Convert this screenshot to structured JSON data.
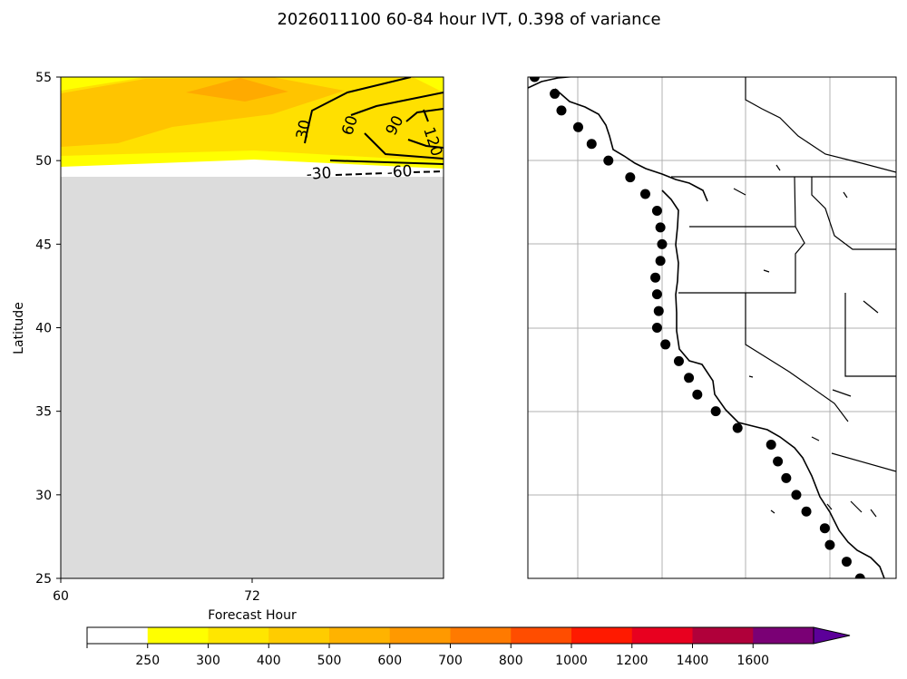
{
  "title": "2026011100 60-84 hour IVT, 0.398 of variance",
  "chart_data": [
    {
      "type": "heatmap",
      "panel": "hovmoller",
      "xlabel": "Forecast Hour",
      "ylabel": "Latitude",
      "xlim": [
        60,
        84
      ],
      "ylim": [
        25,
        55
      ],
      "x_ticks": [
        60,
        72
      ],
      "y_ticks": [
        25,
        30,
        35,
        40,
        45,
        50,
        55
      ],
      "x_tick_labels": [
        "60",
        "72"
      ],
      "y_tick_labels": [
        "25",
        "30",
        "35",
        "40",
        "45",
        "50",
        "55"
      ],
      "no_data_below_latitude": 49,
      "filled_contours": [
        {
          "level": "250-300",
          "color": "#ffff00",
          "region": "lat 49.6-55, all hours"
        },
        {
          "level": "300-400",
          "color": "#ffe000",
          "region": "lat 50.2-54.8"
        },
        {
          "level": "400-500",
          "color": "#ffc400",
          "region": "lat 50.8-54.5"
        },
        {
          "level": "500-600",
          "color": "#ffaa00",
          "region": "near lat 54, hour 70-74"
        }
      ],
      "line_contours": [
        {
          "value": 30,
          "label": "30",
          "style": "solid"
        },
        {
          "value": 60,
          "label": "60",
          "style": "solid"
        },
        {
          "value": 90,
          "label": "90",
          "style": "solid"
        },
        {
          "value": 120,
          "label": "120",
          "style": "solid"
        },
        {
          "value": -30,
          "label": "-30",
          "style": "dashed"
        },
        {
          "value": -60,
          "label": "-60",
          "style": "dashed"
        }
      ]
    },
    {
      "type": "scatter",
      "panel": "map",
      "description_label": "West Coast map with IVT locations",
      "points_lat_lon": [
        [
          55,
          -131.6
        ],
        [
          54,
          -130.4
        ],
        [
          53,
          -130.0
        ],
        [
          52,
          -129.0
        ],
        [
          51,
          -128.2
        ],
        [
          50,
          -127.2
        ],
        [
          49,
          -125.9
        ],
        [
          48,
          -125.0
        ],
        [
          47,
          -124.3
        ],
        [
          46,
          -124.1
        ],
        [
          45,
          -124.0
        ],
        [
          44,
          -124.1
        ],
        [
          43,
          -124.4
        ],
        [
          42,
          -124.3
        ],
        [
          41,
          -124.2
        ],
        [
          40,
          -124.3
        ],
        [
          39,
          -123.8
        ],
        [
          38,
          -123.0
        ],
        [
          37,
          -122.4
        ],
        [
          36,
          -121.9
        ],
        [
          35,
          -120.8
        ],
        [
          34,
          -119.5
        ],
        [
          33,
          -117.5
        ],
        [
          32,
          -117.1
        ],
        [
          31,
          -116.6
        ],
        [
          30,
          -116.0
        ],
        [
          29,
          -115.4
        ],
        [
          28,
          -114.3
        ],
        [
          27,
          -114.0
        ],
        [
          26,
          -113.0
        ],
        [
          25,
          -112.2
        ]
      ]
    },
    {
      "type": "colorbar",
      "boundaries": [
        0,
        250,
        300,
        400,
        500,
        600,
        700,
        800,
        1000,
        1200,
        1400,
        1600
      ],
      "tick_labels": [
        "250",
        "300",
        "400",
        "500",
        "600",
        "700",
        "800",
        "1000",
        "1200",
        "1400",
        "1600"
      ],
      "colors": [
        "#ffffff",
        "#ffff00",
        "#ffe600",
        "#ffcc00",
        "#ffb300",
        "#ff9900",
        "#ff7a00",
        "#ff4d00",
        "#ff1a00",
        "#e8001f",
        "#b0003a",
        "#7a0075",
        "#5c0099"
      ],
      "extend": "max"
    }
  ]
}
